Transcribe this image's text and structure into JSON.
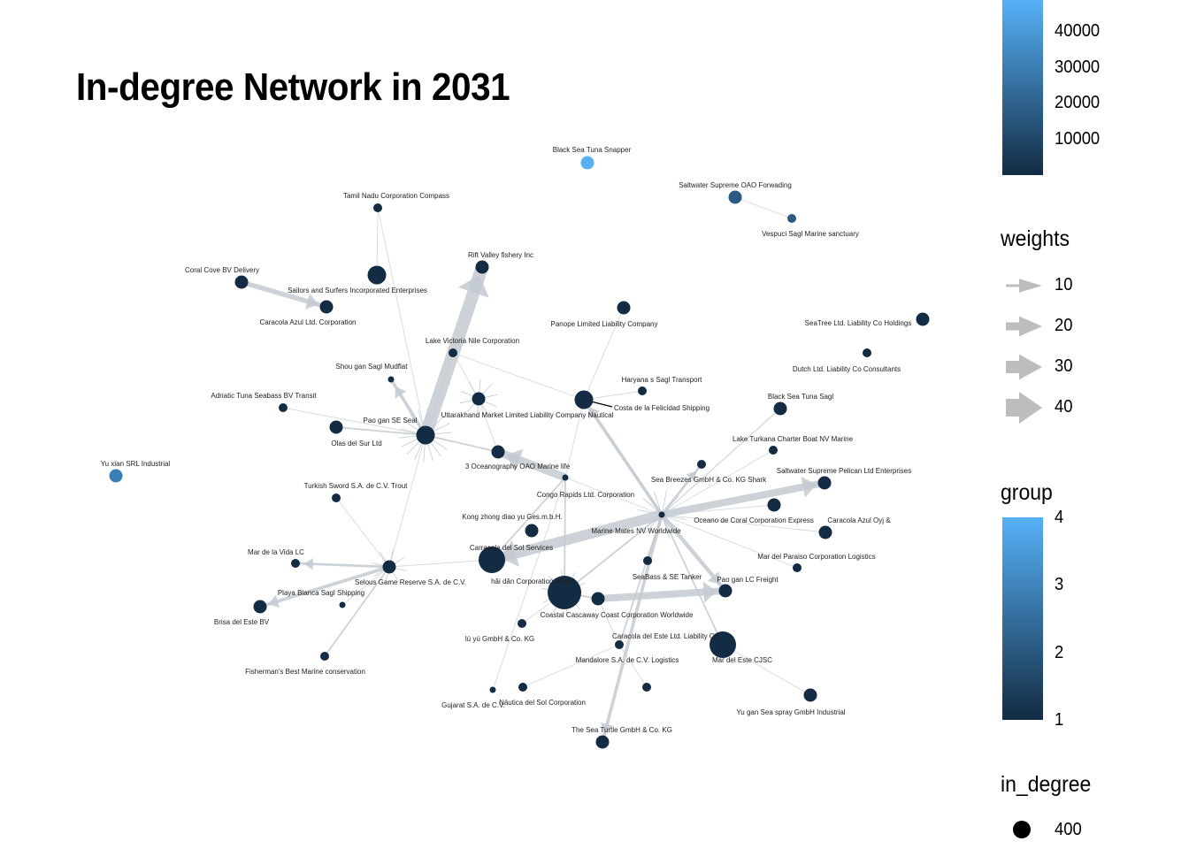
{
  "title": "In-degree Network in 2031",
  "legends": {
    "value_bar": {
      "title": "",
      "ticks": [
        "40000",
        "30000",
        "20000",
        "10000"
      ]
    },
    "weights": {
      "title": "weights",
      "items": [
        "10",
        "20",
        "30",
        "40"
      ]
    },
    "group": {
      "title": "group",
      "ticks": [
        "4",
        "3",
        "2",
        "1"
      ]
    },
    "in_degree": {
      "title": "in_degree",
      "items": [
        "400"
      ]
    }
  },
  "colors": {
    "group_1": "#132B43",
    "group_2": "#2A5A82",
    "group_3": "#3A7EB8",
    "group_4": "#56B1F7",
    "edge": "#c3cad1"
  },
  "nodes": [
    {
      "label": "Black Sea Tuna Snapper",
      "group": 4,
      "size": "m"
    },
    {
      "label": "Saltwater Supreme OAO Forwading",
      "group": 2,
      "size": "m"
    },
    {
      "label": "Vespuci Sagl Marine sanctuary",
      "group": 2,
      "size": "s"
    },
    {
      "label": "Tamil Nadu  Corporation Compass",
      "group": 1,
      "size": "s"
    },
    {
      "label": "Rift Valley fishery Inc",
      "group": 1,
      "size": "m"
    },
    {
      "label": "Coral Cove BV Delivery",
      "group": 1,
      "size": "m"
    },
    {
      "label": "Sailors and Surfers Incorporated Enterprises",
      "group": 1,
      "size": "l"
    },
    {
      "label": "Caracola Azul Ltd. Corporation",
      "group": 1,
      "size": "m"
    },
    {
      "label": "Panope Limited Liability Company",
      "group": 1,
      "size": "m"
    },
    {
      "label": "SeaTree Ltd. Liability Co Holdings",
      "group": 1,
      "size": "m"
    },
    {
      "label": "Lake Victoria Nile    Corporation",
      "group": 1,
      "size": "s"
    },
    {
      "label": "Dutch  Ltd. Liability Co Consultants",
      "group": 1,
      "size": "s"
    },
    {
      "label": "Shou gan  Sagl Mudflat",
      "group": 1,
      "size": "xs"
    },
    {
      "label": "Haryana s Sagl Transport",
      "group": 1,
      "size": "s"
    },
    {
      "label": "Adriatic Tuna Seabass BV Transit",
      "group": 1,
      "size": "s"
    },
    {
      "label": "Costa de la Felicidad Shipping",
      "group": 1,
      "size": "l"
    },
    {
      "label": "Black Sea Tuna Sagl",
      "group": 1,
      "size": "m"
    },
    {
      "label": "Pao gan SE Seal",
      "group": 1,
      "size": "l"
    },
    {
      "label": "Uttarakhand  Market Limited Liability Company Nautical",
      "group": 1,
      "size": "m"
    },
    {
      "label": "Olas del Sur Ltd",
      "group": 1,
      "size": "m"
    },
    {
      "label": "Lake Turkana  Charter Boat  NV Marine",
      "group": 1,
      "size": "s"
    },
    {
      "label": "3 Oceanography OAO Marine life",
      "group": 1,
      "size": "m"
    },
    {
      "label": "Yu xian  SRL Industrial",
      "group": 3,
      "size": "m"
    },
    {
      "label": "Sea Breezes GmbH & Co. KG Shark",
      "group": 1,
      "size": "s"
    },
    {
      "label": "Saltwater Supreme Pelican Ltd Enterprises",
      "group": 1,
      "size": "m"
    },
    {
      "label": "Turkish Sword S.A. de C.V. Trout",
      "group": 1,
      "size": "s"
    },
    {
      "label": "Congo Rapids  Ltd. Corporation",
      "group": 1,
      "size": "xs"
    },
    {
      "label": "Oceano de Coral Corporation Express",
      "group": 1,
      "size": "m"
    },
    {
      "label": "Kong zhong diao yu  Ges.m.b.H.",
      "group": 1,
      "size": "m"
    },
    {
      "label": "Marine Mates NV Worldwide",
      "group": 1,
      "size": "xs"
    },
    {
      "label": "Caracola Azul Oyj &",
      "group": 1,
      "size": "m"
    },
    {
      "label": "Mar de la Vida LC",
      "group": 1,
      "size": "s"
    },
    {
      "label": "Carracola del Sol Services",
      "group": 1,
      "size": "xl"
    },
    {
      "label": "Mar del Paraiso Corporation Logistics",
      "group": 1,
      "size": "s"
    },
    {
      "label": "Selous Game Reserve  S.A. de C.V.",
      "group": 1,
      "size": "m"
    },
    {
      "label": "SeaBass &  SE Tanker",
      "group": 1,
      "size": "s"
    },
    {
      "label": "hǎi dǎn Corporation Wharf",
      "group": 1,
      "size": "xxl"
    },
    {
      "label": "Pao gan LC Freight",
      "group": 1,
      "size": "m"
    },
    {
      "label": "Playa Blanca Sagl Shipping",
      "group": 1,
      "size": "xs"
    },
    {
      "label": "Brisa del Este BV",
      "group": 1,
      "size": "m"
    },
    {
      "label": "Coastal Cascaway Coast Corporation Worldwide",
      "group": 1,
      "size": "m"
    },
    {
      "label": "Caracola del Este Ltd. Liability Co",
      "group": 1,
      "size": "s"
    },
    {
      "label": "lú yú GmbH & Co. KG",
      "group": 1,
      "size": "s"
    },
    {
      "label": "Mandalore S.A. de C.V. Logistics",
      "group": 1,
      "size": "s"
    },
    {
      "label": "Mar del Este CJSC",
      "group": 1,
      "size": "xl"
    },
    {
      "label": "Fisherman's Best Marine conservation",
      "group": 1,
      "size": "s"
    },
    {
      "label": "Náutica del Sol Corporation",
      "group": 1,
      "size": "s"
    },
    {
      "label": "Yu gan  Sea spray GmbH Industrial",
      "group": 1,
      "size": "m"
    },
    {
      "label": "Gujarat  S.A. de C.V.",
      "group": 1,
      "size": "xs"
    },
    {
      "label": "The Sea Turtle GmbH & Co. KG",
      "group": 1,
      "size": "m"
    }
  ]
}
